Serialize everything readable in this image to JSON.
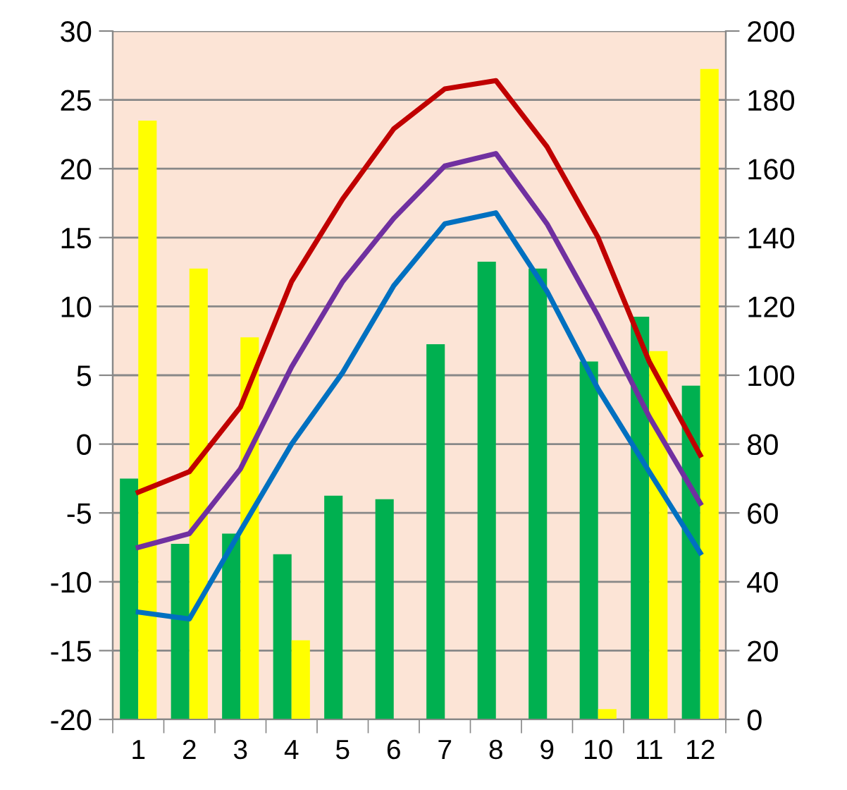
{
  "chart_data": {
    "type": "bar",
    "categories": [
      "1",
      "2",
      "3",
      "4",
      "5",
      "6",
      "7",
      "8",
      "9",
      "10",
      "11",
      "12"
    ],
    "series": [
      {
        "axis": "y2",
        "color": "#00b050",
        "values": [
          70,
          51,
          54,
          48,
          65,
          64,
          109,
          133,
          131,
          104,
          117,
          97
        ]
      },
      {
        "axis": "y2",
        "color": "#ffff00",
        "values": [
          174,
          131,
          111,
          23,
          null,
          null,
          null,
          null,
          null,
          3,
          107,
          189
        ]
      },
      {
        "type": "line",
        "axis": "y",
        "color": "#c00000",
        "values": [
          -3.5,
          -2,
          2.7,
          11.8,
          17.8,
          22.9,
          25.8,
          26.4,
          21.6,
          15,
          6,
          -0.8
        ]
      },
      {
        "type": "line",
        "axis": "y",
        "color": "#7030a0",
        "values": [
          -7.5,
          -6.5,
          -1.8,
          5.6,
          11.8,
          16.4,
          20.2,
          21.1,
          16,
          9.3,
          2,
          -4.3
        ]
      },
      {
        "type": "line",
        "axis": "y",
        "color": "#0070c0",
        "values": [
          -12.2,
          -12.7,
          -6.3,
          0,
          5.2,
          11.5,
          16,
          16.8,
          11.1,
          4,
          -2,
          -7.9
        ]
      }
    ],
    "ylim": [
      -20,
      30
    ],
    "yticks": [
      -20,
      -15,
      -10,
      -5,
      0,
      5,
      10,
      15,
      20,
      25,
      30
    ],
    "y2lim": [
      0,
      200
    ],
    "y2ticks": [
      0,
      20,
      40,
      60,
      80,
      100,
      120,
      140,
      160,
      180,
      200
    ],
    "grid": "y",
    "legend": false,
    "marker": "none",
    "line_style": "solid"
  }
}
